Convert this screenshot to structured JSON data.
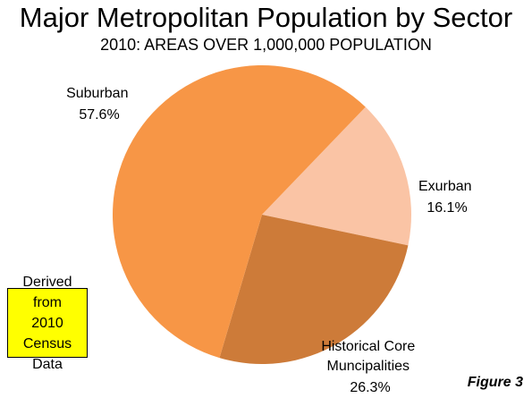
{
  "chart_data": {
    "type": "pie",
    "title": "Major Metropolitan Population by Sector",
    "subtitle": "2010: AREAS OVER 1,000,000 POPULATION",
    "slices": [
      {
        "label": "Suburban",
        "value": 57.6,
        "value_label": "57.6%",
        "color": "#f79646"
      },
      {
        "label": "Exurban",
        "value": 16.1,
        "value_label": "16.1%",
        "color": "#fac4a5"
      },
      {
        "label": "Historical Core Muncipalities",
        "value": 26.3,
        "value_label": "26.3%",
        "color": "#cd7b39"
      }
    ]
  },
  "note": "Derived from\n2010 Census\nData",
  "figure_label": "Figure 3"
}
